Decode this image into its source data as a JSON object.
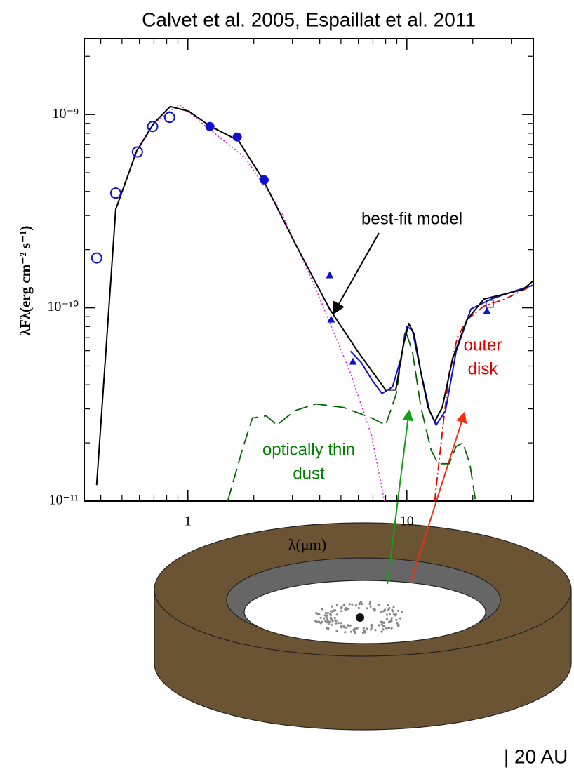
{
  "chart_data": {
    "type": "line",
    "title": "Calvet et al. 2005, Espaillat et al. 2011",
    "xlabel": "λ(μm)",
    "ylabel": "λFλ(erg cm⁻² s⁻¹)",
    "xscale": "log",
    "yscale": "log",
    "xlim": [
      0.336,
      37.8
    ],
    "ylim": [
      1e-11,
      2.47e-09
    ],
    "xticks": [
      1,
      10
    ],
    "yticks": [
      {
        "value": 1e-11,
        "label": "10⁻¹¹"
      },
      {
        "value": 1e-10,
        "label": "10⁻¹⁰"
      },
      {
        "value": 1e-09,
        "label": "10⁻⁹"
      }
    ],
    "xminorticks": [
      0.4,
      0.5,
      0.6,
      0.7,
      0.8,
      0.9,
      2,
      3,
      4,
      5,
      6,
      7,
      8,
      9,
      20,
      30
    ],
    "yminorticks": [
      2e-11,
      3e-11,
      4e-11,
      5e-11,
      6e-11,
      7e-11,
      8e-11,
      9e-11,
      2e-10,
      3e-10,
      4e-10,
      5e-10,
      6e-10,
      7e-10,
      8e-10,
      9e-10,
      2e-09
    ],
    "series": [
      {
        "color": "#e020e0",
        "style": "dotted",
        "x": [
          0.383,
          0.468,
          0.583,
          0.7,
          0.91,
          1.27,
          1.83,
          2.65,
          3.83,
          5.53,
          6.9,
          7.9
        ],
        "values": [
          1.21e-11,
          3.2e-10,
          6.4e-10,
          9e-10,
          1.13e-09,
          8.3e-10,
          5.96e-10,
          3.18e-10,
          1.26e-10,
          4.6e-11,
          2.18e-11,
          1e-11
        ]
      },
      {
        "color": "#006400",
        "style": "dashed",
        "x": [
          1.52,
          1.77,
          1.97,
          2.28,
          2.55,
          3.07,
          3.83,
          5.14,
          6.9,
          8.0,
          8.95,
          9.84,
          10.6,
          11.6,
          12.9,
          13.9,
          15.6,
          16.8,
          18.0,
          19.4,
          20.6
        ],
        "values": [
          1e-11,
          1.84e-11,
          2.69e-11,
          2.76e-11,
          2.47e-11,
          2.93e-11,
          3.18e-11,
          3.05e-11,
          2.69e-11,
          2.47e-11,
          3.6e-11,
          7.66e-11,
          5.96e-11,
          3.05e-11,
          1.84e-11,
          1.56e-11,
          1.56e-11,
          1.92e-11,
          2e-11,
          1.56e-11,
          1e-11
        ]
      },
      {
        "color": "#e00000",
        "style": "dashdot",
        "x": [
          13.4,
          14.7,
          15.6,
          17.0,
          18.8,
          22.5,
          28.1,
          37.8
        ],
        "values": [
          1e-11,
          2.58e-11,
          4.6e-11,
          7e-11,
          8.67e-11,
          1.02e-10,
          1.11e-10,
          1.31e-10
        ]
      },
      {
        "color": "#1010d0",
        "style": "solid",
        "x": [
          5.53,
          6.2,
          6.9,
          7.7,
          8.6,
          9.4,
          10.0,
          10.6,
          11.6,
          12.7,
          13.6,
          15.0,
          16.8,
          19.6,
          24.3,
          30.3,
          37.8
        ],
        "values": [
          5.96e-11,
          5.2e-11,
          4.26e-11,
          3.6e-11,
          3.9e-11,
          5.47e-11,
          8e-11,
          7.66e-11,
          4.62e-11,
          2.93e-11,
          2.47e-11,
          2.93e-11,
          5.96e-11,
          9.85e-11,
          1.11e-10,
          1.21e-10,
          1.31e-10
        ]
      },
      {
        "color": "#000000",
        "style": "solid",
        "x": [
          0.383,
          0.468,
          0.583,
          0.7,
          0.83,
          1.01,
          1.27,
          1.7,
          2.2,
          3.07,
          4.44,
          5.96,
          8.0,
          8.9,
          9.66,
          10.2,
          10.8,
          11.6,
          12.5,
          13.4,
          14.5,
          16.2,
          18.8,
          22.5,
          28.1,
          33.8,
          37.8
        ],
        "values": [
          1.21e-11,
          3.23e-10,
          6.47e-10,
          9.04e-10,
          1.1e-09,
          1.04e-09,
          8.67e-10,
          7.34e-10,
          4.63e-10,
          2.18e-10,
          9.85e-11,
          5.96e-11,
          3.76e-11,
          3.76e-11,
          6.47e-11,
          8.3e-11,
          7.3e-11,
          4.62e-11,
          3.05e-11,
          2.58e-11,
          3.05e-11,
          5.47e-11,
          8.67e-11,
          1.11e-10,
          1.18e-10,
          1.24e-10,
          1.38e-10
        ]
      },
      {
        "color": "#1010d0",
        "marker": "circle-open",
        "x": [
          0.383,
          0.468,
          0.588,
          0.69,
          0.825
        ],
        "values": [
          1.81e-10,
          3.92e-10,
          6.4e-10,
          8.67e-10,
          9.67e-10
        ]
      },
      {
        "color": "#1010d0",
        "marker": "circle",
        "x": [
          1.26,
          1.68,
          2.23
        ],
        "values": [
          8.67e-10,
          7.65e-10,
          4.59e-10
        ]
      },
      {
        "color": "#1010d0",
        "marker": "triangle",
        "x": [
          4.44,
          4.51,
          5.67,
          23.2
        ],
        "values": [
          1.47e-10,
          8.67e-11,
          5.25e-11,
          9.6e-11
        ]
      },
      {
        "color": "#1010d0",
        "marker": "square-open",
        "x": [
          23.9
        ],
        "values": [
          1.05e-10
        ]
      }
    ],
    "annotations": [
      {
        "lines": [
          "best-fit model"
        ],
        "color": "#000000"
      },
      {
        "lines": [
          "outer",
          "disk"
        ],
        "color": "#e00000"
      },
      {
        "lines": [
          "optically thin",
          "dust"
        ],
        "color": "#008000"
      }
    ]
  },
  "diagram": {
    "scale_label": "| 20 AU"
  }
}
